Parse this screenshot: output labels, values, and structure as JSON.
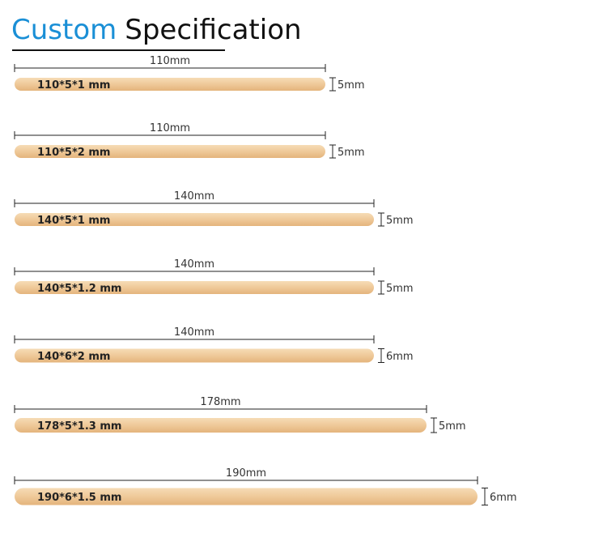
{
  "title": {
    "highlight": "Custom",
    "rest": "Specification"
  },
  "items": [
    {
      "label": "110*5*1 mm",
      "length": "110mm",
      "width": "5mm"
    },
    {
      "label": "110*5*2 mm",
      "length": "110mm",
      "width": "5mm"
    },
    {
      "label": "140*5*1 mm",
      "length": "140mm",
      "width": "5mm"
    },
    {
      "label": "140*5*1.2 mm",
      "length": "140mm",
      "width": "5mm"
    },
    {
      "label": "140*6*2 mm",
      "length": "140mm",
      "width": "6mm"
    },
    {
      "label": "178*5*1.3 mm",
      "length": "178mm",
      "width": "5mm"
    },
    {
      "label": "190*6*1.5 mm",
      "length": "190mm",
      "width": "6mm"
    }
  ]
}
